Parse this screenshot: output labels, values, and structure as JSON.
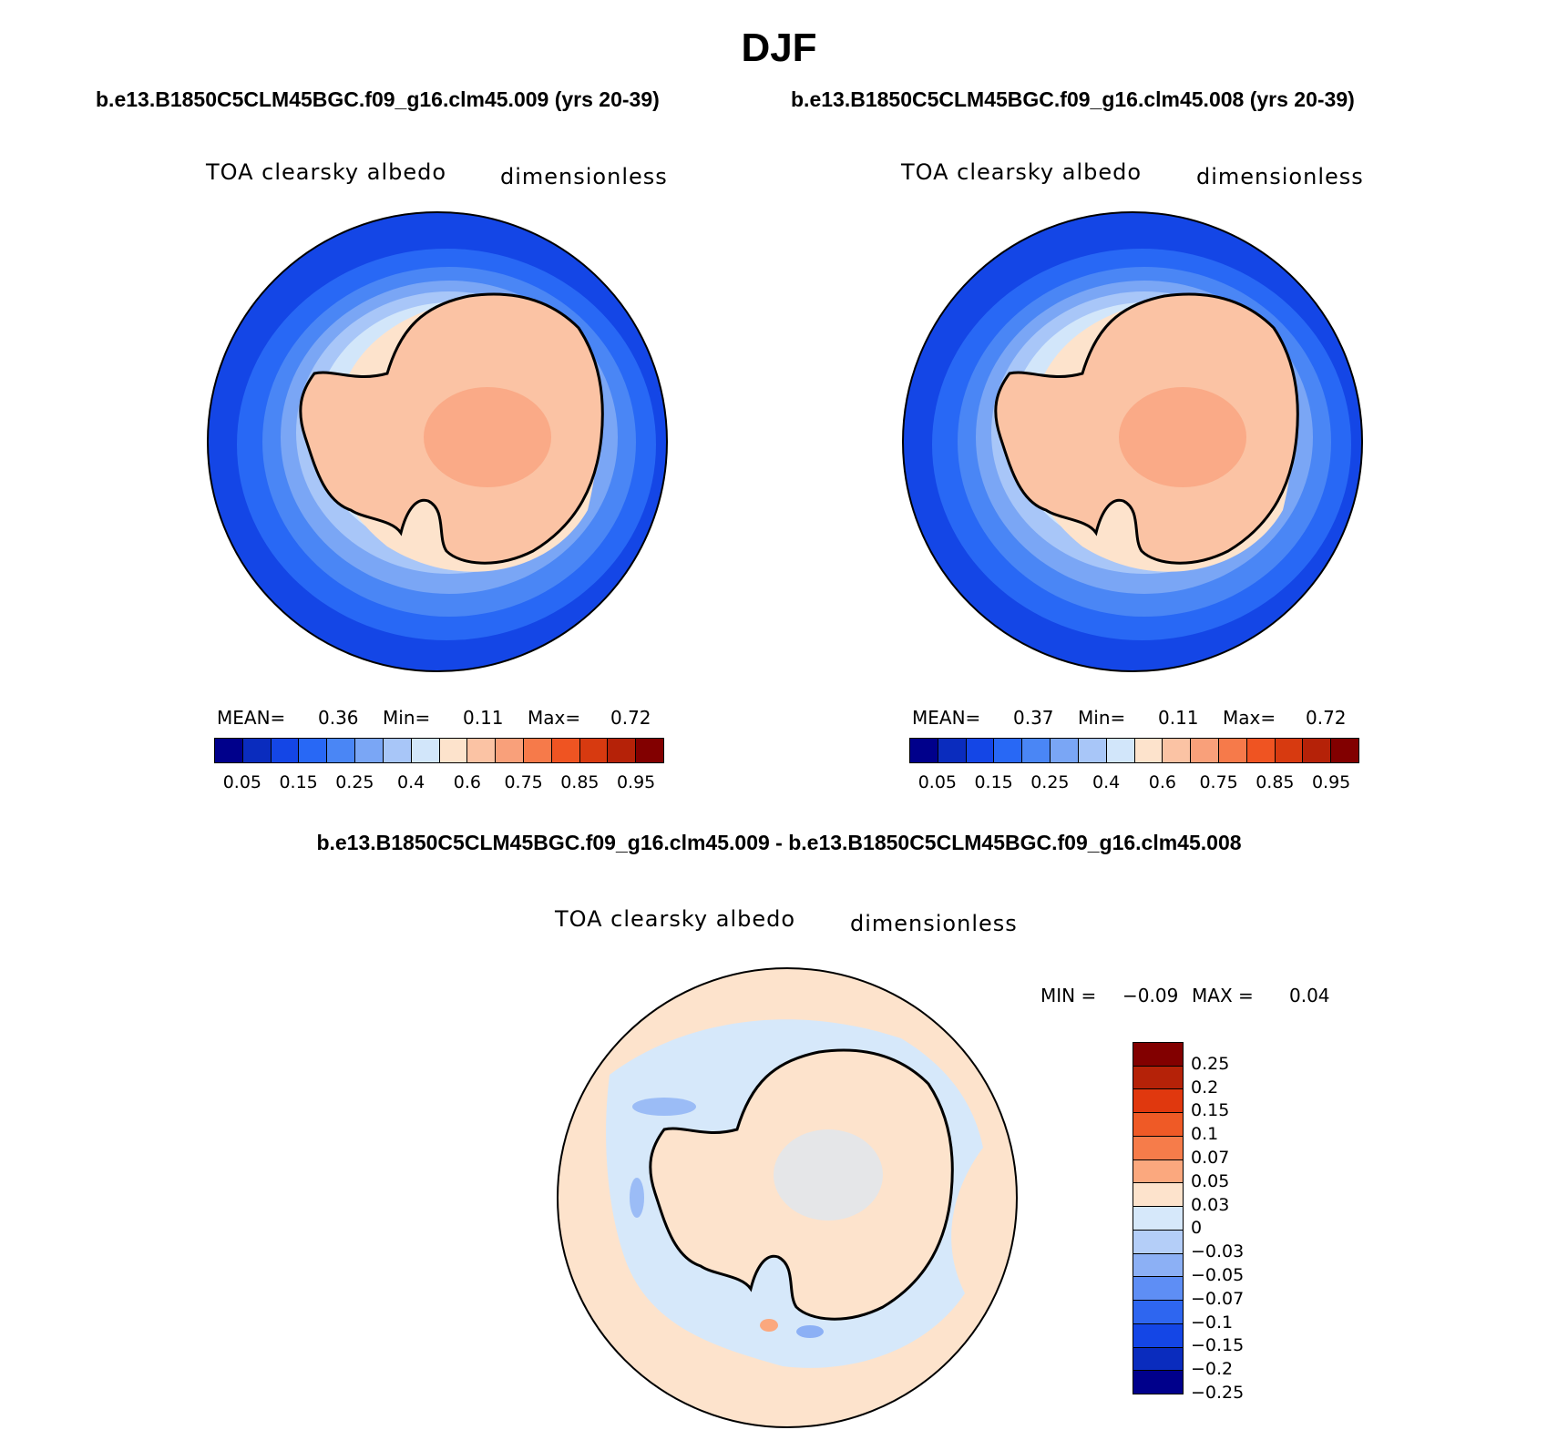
{
  "season": "DJF",
  "panels": [
    {
      "run_title": "b.e13.B1850C5CLM45BGC.f09_g16.clm45.009 (yrs 20-39)",
      "variable": "TOA clearsky albedo",
      "units": "dimensionless",
      "stats": {
        "mean_label": "MEAN=",
        "mean": "0.36",
        "min_label": "Min=",
        "min": "0.11",
        "max_label": "Max=",
        "max": "0.72"
      }
    },
    {
      "run_title": "b.e13.B1850C5CLM45BGC.f09_g16.clm45.008 (yrs 20-39)",
      "variable": "TOA clearsky albedo",
      "units": "dimensionless",
      "stats": {
        "mean_label": "MEAN=",
        "mean": "0.37",
        "min_label": "Min=",
        "min": "0.11",
        "max_label": "Max=",
        "max": "0.72"
      }
    }
  ],
  "abs_colorbar": {
    "colors": [
      "#00008b",
      "#0a2cbe",
      "#1446e6",
      "#2868f5",
      "#4a86f5",
      "#7aa6f5",
      "#a8c6f8",
      "#d2e6fa",
      "#fde3cc",
      "#fbc3a4",
      "#f9a07a",
      "#f67a4a",
      "#ef5422",
      "#d73a10",
      "#b52208",
      "#820000"
    ],
    "tick_labels": [
      "0.05",
      "0.15",
      "0.25",
      "0.4",
      "0.6",
      "0.75",
      "0.85",
      "0.95"
    ]
  },
  "difference": {
    "title": "b.e13.B1850C5CLM45BGC.f09_g16.clm45.009 - b.e13.B1850C5CLM45BGC.f09_g16.clm45.008",
    "variable": "TOA clearsky albedo",
    "units": "dimensionless",
    "stats": {
      "min_label": "MIN =",
      "min": "−0.09",
      "max_label": "MAX =",
      "max": "0.04"
    },
    "colorbar": {
      "colors": [
        "#820000",
        "#b52208",
        "#e0380e",
        "#ef5a26",
        "#f67c4a",
        "#fba87e",
        "#fde3cc",
        "#d6e8fa",
        "#b4cef8",
        "#8cb0f5",
        "#5e8ef5",
        "#2e66f0",
        "#1446e6",
        "#0a2cbe",
        "#00008b"
      ],
      "tick_labels": [
        "0.25",
        "0.2",
        "0.15",
        "0.1",
        "0.07",
        "0.05",
        "0.03",
        "0",
        "−0.03",
        "−0.05",
        "−0.07",
        "−0.1",
        "−0.15",
        "−0.2",
        "−0.25"
      ]
    }
  }
}
